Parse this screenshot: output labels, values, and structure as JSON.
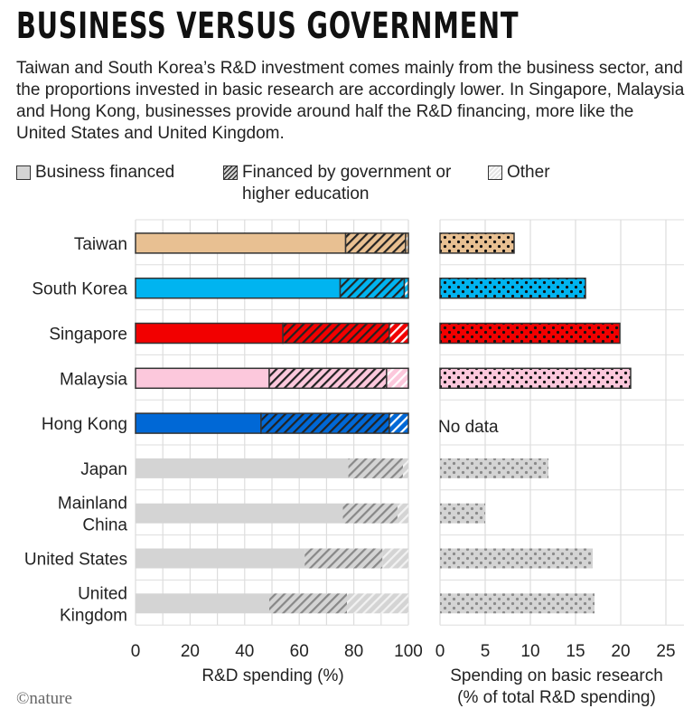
{
  "title": "BUSINESS VERSUS GOVERNMENT",
  "description": "Taiwan and South Korea’s R&D investment comes mainly from the business sector, and the proportions invested in basic research are accordingly lower. In Singapore, Malaysia and Hong Kong, businesses provide around half the R&D financing, more like the United States and United Kingdom.",
  "legend": {
    "business": "Business financed",
    "government": "Financed by government or higher education",
    "other": "Other"
  },
  "logo": "©nature",
  "no_data_label": "No data",
  "colors": {
    "Taiwan": "#e8c092",
    "South Korea": "#00b4f0",
    "Singapore": "#f20000",
    "Malaysia": "#fcc8dc",
    "Hong Kong": "#0068d6",
    "grey": "#d4d4d4"
  },
  "chart_data": [
    {
      "type": "bar",
      "orientation": "horizontal",
      "stacked": true,
      "categories": [
        "Taiwan",
        "South Korea",
        "Singapore",
        "Malaysia",
        "Hong Kong",
        "Japan",
        "Mainland China",
        "United States",
        "United Kingdom"
      ],
      "category_labels": [
        [
          "Taiwan"
        ],
        [
          "South Korea"
        ],
        [
          "Singapore"
        ],
        [
          "Malaysia"
        ],
        [
          "Hong Kong"
        ],
        [
          "Japan"
        ],
        [
          "Mainland",
          "China"
        ],
        [
          "United States"
        ],
        [
          "United",
          "Kingdom"
        ]
      ],
      "series": [
        {
          "name": "Business financed",
          "values": [
            77,
            75,
            54,
            49,
            46,
            78,
            76,
            62,
            49
          ]
        },
        {
          "name": "Financed by government or higher education",
          "values": [
            22,
            23.5,
            39,
            43,
            47,
            20,
            20,
            28.5,
            28.5
          ]
        },
        {
          "name": "Other",
          "values": [
            1,
            1.5,
            7,
            8,
            7,
            2,
            4,
            9.5,
            22.5
          ]
        }
      ],
      "xlabel": "R&D spending (%)",
      "xlim": [
        0,
        100
      ],
      "xticks": [
        "0",
        "20",
        "40",
        "60",
        "80",
        "100"
      ],
      "grid": true
    },
    {
      "type": "bar",
      "orientation": "horizontal",
      "categories": [
        "Taiwan",
        "South Korea",
        "Singapore",
        "Malaysia",
        "Hong Kong",
        "Japan",
        "Mainland China",
        "United States",
        "United Kingdom"
      ],
      "values": [
        8.2,
        16.1,
        19.9,
        21.1,
        null,
        12.0,
        5.0,
        16.9,
        17.1
      ],
      "xlabel": [
        "Spending on basic research",
        "(% of total R&D spending)"
      ],
      "xlim": [
        0,
        25
      ],
      "xticks": [
        "0",
        "5",
        "10",
        "15",
        "20",
        "25"
      ],
      "grid": true
    }
  ]
}
